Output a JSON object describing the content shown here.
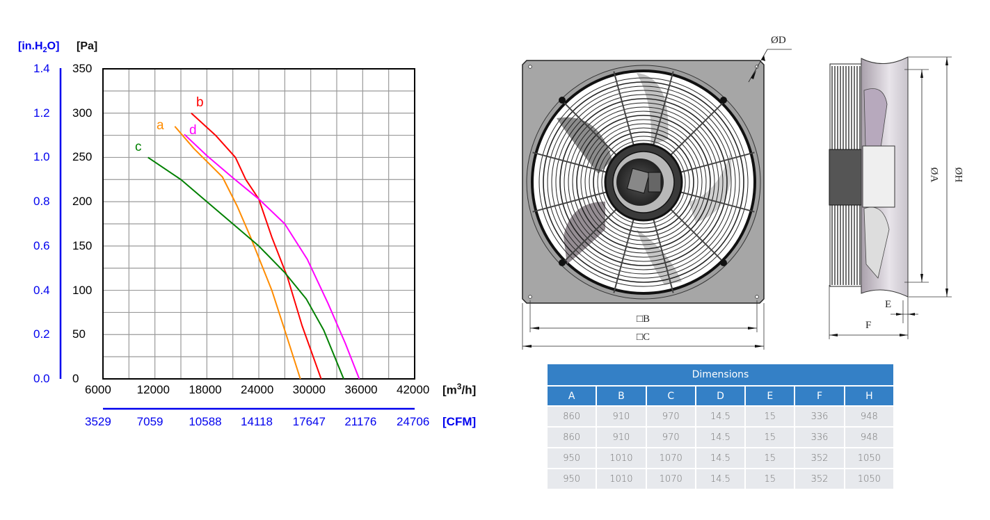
{
  "chart_data": {
    "type": "line",
    "title": "",
    "xlabel": "[m3/h]",
    "ylabel": "[Pa]",
    "secondary_xlabel": "[CFM]",
    "secondary_ylabel": "[in.H2O]",
    "xlim": [
      6000,
      42000
    ],
    "ylim": [
      0,
      350
    ],
    "grid": true,
    "x_ticks": [
      6000,
      12000,
      18000,
      24000,
      30000,
      36000,
      42000
    ],
    "y_ticks": [
      0,
      50,
      100,
      150,
      200,
      250,
      300,
      350
    ],
    "secondary_x_ticks": [
      3529,
      7059,
      10588,
      14118,
      17647,
      21176,
      24706
    ],
    "secondary_y_ticks": [
      "0.0",
      "0.2",
      "0.4",
      "0.6",
      "0.8",
      "1.0",
      "1.2",
      "1.4"
    ],
    "series": [
      {
        "name": "a",
        "color": "#ff8c00",
        "points": [
          [
            14300,
            285
          ],
          [
            16500,
            260
          ],
          [
            19800,
            228
          ],
          [
            21500,
            195
          ],
          [
            23000,
            161
          ],
          [
            25500,
            100
          ],
          [
            27000,
            55
          ],
          [
            28800,
            0
          ]
        ]
      },
      {
        "name": "b",
        "color": "#ff0000",
        "points": [
          [
            16200,
            300
          ],
          [
            19000,
            275
          ],
          [
            21300,
            250
          ],
          [
            22500,
            225
          ],
          [
            24000,
            203
          ],
          [
            25500,
            160
          ],
          [
            27300,
            115
          ],
          [
            29000,
            60
          ],
          [
            31200,
            0
          ]
        ]
      },
      {
        "name": "c",
        "color": "#008000",
        "points": [
          [
            11200,
            250
          ],
          [
            15000,
            225
          ],
          [
            18000,
            200
          ],
          [
            21000,
            175
          ],
          [
            24000,
            150
          ],
          [
            27000,
            120
          ],
          [
            29500,
            90
          ],
          [
            31500,
            55
          ],
          [
            33800,
            0
          ]
        ]
      },
      {
        "name": "d",
        "color": "#ff00ff",
        "points": [
          [
            15400,
            276
          ],
          [
            18000,
            252
          ],
          [
            21000,
            227
          ],
          [
            24000,
            203
          ],
          [
            27000,
            175
          ],
          [
            29600,
            135
          ],
          [
            32000,
            85
          ],
          [
            34000,
            40
          ],
          [
            35600,
            0
          ]
        ]
      }
    ]
  },
  "chart": {
    "unit_left": "[in.H",
    "unit_left_sub": "2",
    "unit_left_end": "O]",
    "unit_pa": "[Pa]",
    "unit_m3h_pre": "[m",
    "unit_m3h_sup": "3",
    "unit_m3h_post": "/h]",
    "unit_cfm": "[CFM]",
    "inh2o_ticks": [
      "1.4",
      "1.2",
      "1.0",
      "0.8",
      "0.6",
      "0.4",
      "0.2",
      "0.0"
    ],
    "pa_ticks": [
      "350",
      "300",
      "250",
      "200",
      "150",
      "100",
      "50",
      "0"
    ],
    "m3h_ticks": [
      "6000",
      "12000",
      "18000",
      "24000",
      "30000",
      "36000",
      "42000"
    ],
    "cfm_ticks": [
      "3529",
      "7059",
      "10588",
      "14118",
      "17647",
      "21176",
      "24706"
    ],
    "curve_labels": {
      "a": "a",
      "b": "b",
      "c": "c",
      "d": "d"
    }
  },
  "drawing": {
    "front_labels": {
      "d": "ØD",
      "b": "□B",
      "c": "□C"
    },
    "side_labels": {
      "a": "ØA",
      "h": "ØH",
      "e": "E",
      "f": "F"
    }
  },
  "table": {
    "title": "Dimensions",
    "columns": [
      "A",
      "B",
      "C",
      "D",
      "E",
      "F",
      "H"
    ],
    "rows": [
      [
        "860",
        "910",
        "970",
        "14.5",
        "15",
        "336",
        "948"
      ],
      [
        "860",
        "910",
        "970",
        "14.5",
        "15",
        "336",
        "948"
      ],
      [
        "950",
        "1010",
        "1070",
        "14.5",
        "15",
        "352",
        "1050"
      ],
      [
        "950",
        "1010",
        "1070",
        "14.5",
        "15",
        "352",
        "1050"
      ]
    ]
  }
}
